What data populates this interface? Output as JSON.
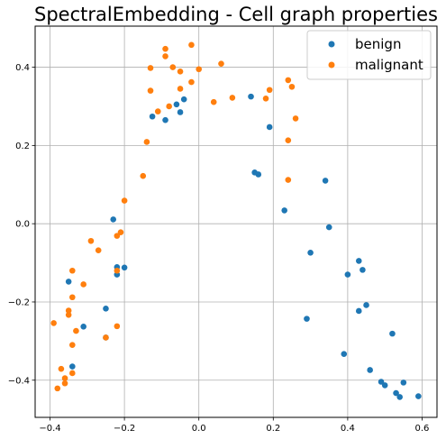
{
  "chart_data": {
    "type": "scatter",
    "title": "SpectralEmbedding - Cell graph properties",
    "xlabel": "",
    "ylabel": "",
    "xlim": [
      -0.44,
      0.64
    ],
    "ylim": [
      -0.495,
      0.505
    ],
    "xticks": [
      -0.4,
      -0.2,
      0.0,
      0.2,
      0.4,
      0.6
    ],
    "xtick_labels": [
      "−0.4",
      "−0.2",
      "0.0",
      "0.2",
      "0.4",
      "0.6"
    ],
    "yticks": [
      -0.4,
      -0.2,
      0.0,
      0.2,
      0.4
    ],
    "ytick_labels": [
      "−0.4",
      "−0.2",
      "0.0",
      "0.2",
      "0.4"
    ],
    "grid": true,
    "legend_position": "top-right",
    "series": [
      {
        "name": "benign",
        "color": "#1f77b4",
        "points": [
          [
            -0.35,
            -0.148
          ],
          [
            -0.31,
            -0.263
          ],
          [
            -0.34,
            -0.365
          ],
          [
            -0.25,
            -0.217
          ],
          [
            -0.25,
            -0.291
          ],
          [
            -0.23,
            0.011
          ],
          [
            -0.22,
            -0.111
          ],
          [
            -0.2,
            -0.112
          ],
          [
            -0.22,
            -0.13
          ],
          [
            -0.125,
            0.274
          ],
          [
            -0.09,
            0.265
          ],
          [
            -0.06,
            0.305
          ],
          [
            -0.05,
            0.285
          ],
          [
            -0.04,
            0.318
          ],
          [
            0.14,
            0.325
          ],
          [
            0.15,
            0.131
          ],
          [
            0.16,
            0.126
          ],
          [
            0.19,
            0.247
          ],
          [
            0.23,
            0.034
          ],
          [
            0.29,
            -0.243
          ],
          [
            0.3,
            -0.074
          ],
          [
            0.34,
            0.11
          ],
          [
            0.35,
            -0.009
          ],
          [
            0.39,
            -0.333
          ],
          [
            0.4,
            -0.13
          ],
          [
            0.43,
            -0.095
          ],
          [
            0.43,
            -0.223
          ],
          [
            0.44,
            -0.118
          ],
          [
            0.45,
            -0.208
          ],
          [
            0.46,
            -0.374
          ],
          [
            0.49,
            -0.404
          ],
          [
            0.5,
            -0.413
          ],
          [
            0.52,
            -0.281
          ],
          [
            0.53,
            -0.433
          ],
          [
            0.54,
            -0.443
          ],
          [
            0.55,
            -0.406
          ],
          [
            0.59,
            -0.441
          ]
        ]
      },
      {
        "name": "malignant",
        "color": "#ff7f0e",
        "points": [
          [
            -0.39,
            -0.254
          ],
          [
            -0.38,
            -0.421
          ],
          [
            -0.37,
            -0.371
          ],
          [
            -0.36,
            -0.408
          ],
          [
            -0.36,
            -0.395
          ],
          [
            -0.35,
            -0.233
          ],
          [
            -0.35,
            -0.222
          ],
          [
            -0.34,
            -0.188
          ],
          [
            -0.34,
            -0.31
          ],
          [
            -0.34,
            -0.382
          ],
          [
            -0.34,
            -0.12
          ],
          [
            -0.33,
            -0.274
          ],
          [
            -0.31,
            -0.155
          ],
          [
            -0.29,
            -0.044
          ],
          [
            -0.27,
            -0.068
          ],
          [
            -0.25,
            -0.291
          ],
          [
            -0.22,
            -0.031
          ],
          [
            -0.22,
            -0.12
          ],
          [
            -0.22,
            -0.262
          ],
          [
            -0.21,
            -0.022
          ],
          [
            -0.2,
            0.059
          ],
          [
            -0.15,
            0.122
          ],
          [
            -0.14,
            0.209
          ],
          [
            -0.13,
            0.398
          ],
          [
            -0.13,
            0.34
          ],
          [
            -0.11,
            0.287
          ],
          [
            -0.09,
            0.447
          ],
          [
            -0.09,
            0.428
          ],
          [
            -0.08,
            0.3
          ],
          [
            -0.07,
            0.4
          ],
          [
            -0.05,
            0.389
          ],
          [
            -0.05,
            0.345
          ],
          [
            -0.02,
            0.457
          ],
          [
            -0.02,
            0.362
          ],
          [
            0.0,
            0.395
          ],
          [
            0.04,
            0.311
          ],
          [
            0.06,
            0.409
          ],
          [
            0.09,
            0.322
          ],
          [
            0.18,
            0.32
          ],
          [
            0.19,
            0.342
          ],
          [
            0.24,
            0.367
          ],
          [
            0.24,
            0.213
          ],
          [
            0.24,
            0.112
          ],
          [
            0.25,
            0.35
          ],
          [
            0.26,
            0.269
          ]
        ]
      }
    ]
  }
}
